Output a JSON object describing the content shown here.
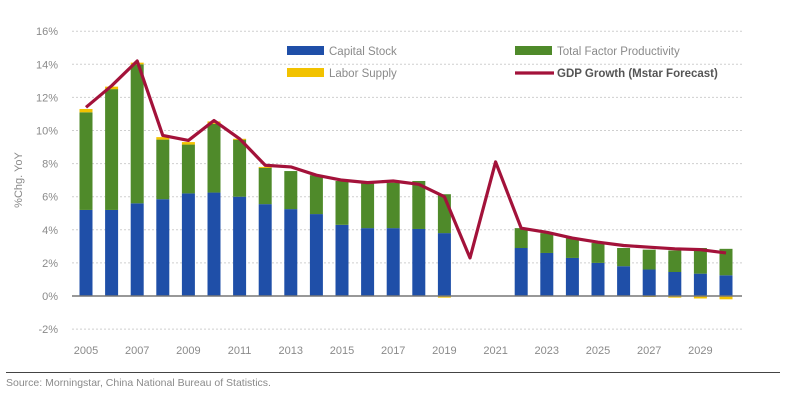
{
  "chart_data": {
    "type": "bar",
    "stacked": true,
    "title": "",
    "xlabel": "",
    "ylabel": "%Chg. YoY",
    "ylim": [
      -2,
      16
    ],
    "yticks": [
      -2,
      0,
      2,
      4,
      6,
      8,
      10,
      12,
      14,
      16
    ],
    "ytick_labels": [
      "-2%",
      "0%",
      "2%",
      "4%",
      "6%",
      "8%",
      "10%",
      "12%",
      "14%",
      "16%"
    ],
    "x": [
      2005,
      2006,
      2007,
      2008,
      2009,
      2010,
      2011,
      2012,
      2013,
      2014,
      2015,
      2016,
      2017,
      2018,
      2019,
      2020,
      2021,
      2022,
      2023,
      2024,
      2025,
      2026,
      2027,
      2028,
      2029,
      2030
    ],
    "xtick_labels": [
      "2005",
      "2007",
      "2009",
      "2011",
      "2013",
      "2015",
      "2017",
      "2019",
      "2021",
      "2023",
      "2025",
      "2027",
      "2029"
    ],
    "grid": true,
    "legend_position": "top-right",
    "series": [
      {
        "name": "Capital Stock",
        "type": "bar",
        "color": "#1f4fa8",
        "values": [
          5.2,
          5.2,
          5.6,
          5.85,
          6.2,
          6.25,
          6.0,
          5.55,
          5.25,
          4.95,
          4.3,
          4.1,
          4.1,
          4.05,
          3.8,
          null,
          null,
          2.9,
          2.6,
          2.3,
          2.0,
          1.8,
          1.6,
          1.45,
          1.35,
          1.25
        ]
      },
      {
        "name": "Total Factor Productivity",
        "type": "bar",
        "color": "#4f8a2a",
        "values": [
          5.9,
          7.3,
          8.4,
          3.6,
          2.95,
          4.15,
          3.45,
          2.2,
          2.3,
          2.35,
          2.65,
          2.7,
          2.75,
          2.9,
          2.35,
          null,
          null,
          1.2,
          1.2,
          1.2,
          1.2,
          1.1,
          1.2,
          1.3,
          1.55,
          1.6
        ]
      },
      {
        "name": "Labor Supply",
        "type": "bar",
        "color": "#f2c200",
        "values": [
          0.2,
          0.15,
          0.1,
          0.15,
          0.15,
          0.15,
          0.05,
          0.05,
          0.0,
          0.0,
          0.0,
          0.0,
          0.0,
          0.0,
          -0.1,
          null,
          null,
          0.0,
          0.0,
          0.0,
          0.0,
          0.0,
          -0.05,
          -0.1,
          -0.15,
          -0.2
        ]
      },
      {
        "name": "GDP Growth (Mstar Forecast)",
        "type": "line",
        "color": "#a3123a",
        "values": [
          11.4,
          12.7,
          14.2,
          9.7,
          9.4,
          10.6,
          9.5,
          7.9,
          7.8,
          7.3,
          7.0,
          6.85,
          6.95,
          6.75,
          6.0,
          2.3,
          8.1,
          4.1,
          3.85,
          3.5,
          3.25,
          3.05,
          2.95,
          2.85,
          2.8,
          2.6
        ]
      }
    ]
  },
  "footer": {
    "source": "Source: Morningstar, China National Bureau of Statistics."
  }
}
